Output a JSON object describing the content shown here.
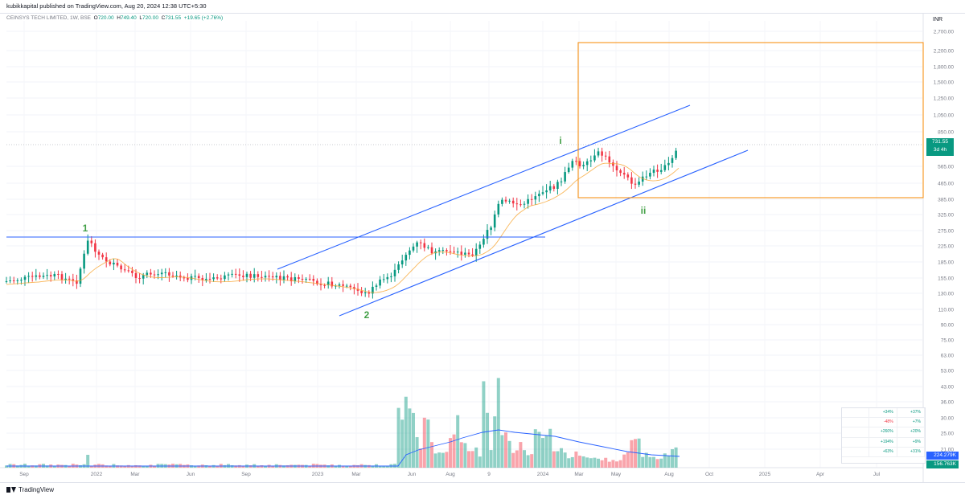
{
  "header": {
    "published_by": "kubikkapital published on TradingView.com, Aug 20, 2024 12:38 UTC+5:30",
    "symbol": "CEINSYS TECH LIMITED, 1W, BSE",
    "ohlc": {
      "o_label": "O",
      "o": "720.00",
      "h_label": "H",
      "h": "749.40",
      "l_label": "L",
      "l": "720.00",
      "c_label": "C",
      "c": "731.55",
      "change": "+19.65 (+2.76%)"
    },
    "currency": "INR"
  },
  "price_badge": {
    "price": "731.55",
    "countdown": "3d 4h"
  },
  "volume_badges": {
    "volume": "224.279K",
    "ma": "156.763K"
  },
  "footer": {
    "brand": "TradingView"
  },
  "stats_table": [
    [
      "+34%",
      "+37%"
    ],
    [
      "-48%",
      "+7%"
    ],
    [
      "+260%",
      "+20%"
    ],
    [
      "+194%",
      "+9%"
    ],
    [
      "+63%",
      "+31%"
    ]
  ],
  "colors": {
    "up": "#089981",
    "down": "#f23645",
    "trendline": "#2962ff",
    "box": "#f7931a",
    "ema_fast": "#f7a531",
    "ema_slow": "#4caf50",
    "vol_ma": "#2962ff"
  },
  "chart_data": {
    "type": "candlestick",
    "scale": "log",
    "y_ticks": [
      "2,700.00",
      "2,200.00",
      "1,800.00",
      "1,500.00",
      "1,250.00",
      "1,050.00",
      "850.00",
      "565.00",
      "465.00",
      "385.00",
      "325.00",
      "275.00",
      "225.00",
      "185.00",
      "155.00",
      "130.00",
      "110.00",
      "90.00",
      "75.00",
      "63.00",
      "53.00",
      "43.00",
      "36.00",
      "30.00",
      "25.00",
      "21.00"
    ],
    "x_ticks": [
      "Sep",
      "2022",
      "Mar",
      "Jun",
      "Sep",
      "2023",
      "Mar",
      "Jun",
      "Aug",
      "9",
      "2024",
      "Mar",
      "May",
      "Aug",
      "Oct",
      "2025",
      "Apr",
      "Jul"
    ],
    "last_price": 731.55,
    "wave_labels": [
      "1",
      "2",
      "i",
      "ii"
    ],
    "grid": true,
    "legend": "none"
  }
}
